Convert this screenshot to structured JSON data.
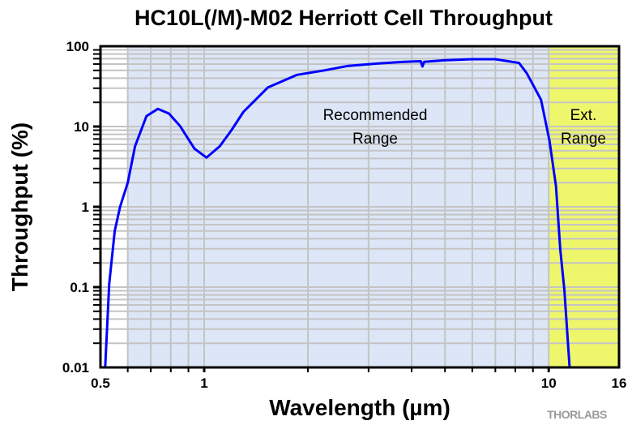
{
  "chart_data": {
    "type": "line",
    "title": "HC10L(/M)-M02 Herriott Cell Throughput",
    "xlabel": "Wavelength (µm)",
    "ylabel": "Throughput (%)",
    "xscale": "log",
    "yscale": "log",
    "xlim": [
      0.5,
      16
    ],
    "ylim": [
      0.01,
      100
    ],
    "xticks": [
      "0.5",
      "1",
      "10",
      "16"
    ],
    "yticks": [
      "0.01",
      "0.1",
      "1",
      "10",
      "100"
    ],
    "grid": true,
    "regions": [
      {
        "label_lines": [
          "Recommended",
          "Range"
        ],
        "x_range": [
          0.6,
          10
        ],
        "color": "#dce6f6"
      },
      {
        "label_lines": [
          "Ext.",
          "Range"
        ],
        "x_range": [
          10,
          16
        ],
        "color": "#eef66c"
      }
    ],
    "series": [
      {
        "name": "Throughput",
        "color": "#0000ff",
        "x": [
          0.516,
          0.53,
          0.55,
          0.57,
          0.6,
          0.63,
          0.68,
          0.734,
          0.79,
          0.85,
          0.937,
          1.016,
          1.11,
          1.2,
          1.3,
          1.53,
          1.86,
          2.23,
          2.62,
          3.2,
          3.8,
          4.25,
          4.3,
          4.35,
          5.0,
          6.0,
          7.0,
          8.2,
          8.64,
          9.5,
          10.05,
          10.5,
          10.8,
          11.1,
          11.5
        ],
        "y": [
          0.01,
          0.11,
          0.5,
          1.0,
          2.0,
          5.7,
          13.5,
          16.6,
          14.5,
          10.2,
          5.3,
          4.1,
          5.7,
          9.0,
          15.2,
          30.6,
          44,
          50,
          57,
          61,
          64,
          65,
          56,
          64,
          67,
          69,
          69,
          62,
          46,
          21.6,
          6.7,
          1.8,
          0.3,
          0.093,
          0.01
        ]
      }
    ]
  },
  "brand": "THORLABS"
}
